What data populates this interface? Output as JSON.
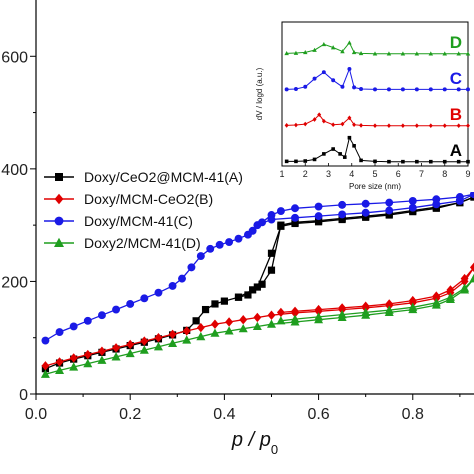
{
  "chart_data": [
    {
      "type": "line",
      "xlabel": "p / p0",
      "ylabel": "",
      "xlim": [
        0.0,
        0.93
      ],
      "ylim": [
        0,
        700
      ],
      "xticks": [
        "0.0",
        "0.2",
        "0.4",
        "0.6",
        "0.8"
      ],
      "yticks": [
        "0",
        "200",
        "400",
        "600"
      ],
      "ytick_labels_visible": [
        "0",
        "200",
        "400",
        "600"
      ],
      "legend": {
        "placement": "center-left",
        "entries": [
          {
            "label": "Doxy/CeO2@MCM-41(A)",
            "label_sub": "2",
            "color": "#000000",
            "marker": "square"
          },
          {
            "label": "Doxy/MCM-CeO2(B)",
            "color": "#e00000",
            "marker": "diamond"
          },
          {
            "label": "Doxy/MCM-41(C)",
            "color": "#1a1ae6",
            "marker": "circle"
          },
          {
            "label": "Doxy2/MCM-41(D)",
            "color": "#1f9e1f",
            "marker": "triangle"
          }
        ]
      },
      "series": [
        {
          "name": "Doxy/CeO2@MCM-41(A)",
          "color": "#000000",
          "marker": "square",
          "adsorption": [
            [
              0.02,
              45
            ],
            [
              0.05,
              55
            ],
            [
              0.08,
              62
            ],
            [
              0.11,
              68
            ],
            [
              0.14,
              74
            ],
            [
              0.17,
              80
            ],
            [
              0.2,
              86
            ],
            [
              0.23,
              92
            ],
            [
              0.26,
              98
            ],
            [
              0.29,
              105
            ],
            [
              0.32,
              113
            ],
            [
              0.34,
              130
            ],
            [
              0.36,
              150
            ],
            [
              0.38,
              160
            ],
            [
              0.4,
              165
            ],
            [
              0.43,
              172
            ],
            [
              0.46,
              185
            ],
            [
              0.48,
              195
            ],
            [
              0.5,
              220
            ],
            [
              0.52,
              300
            ],
            [
              0.55,
              305
            ],
            [
              0.6,
              308
            ],
            [
              0.65,
              312
            ],
            [
              0.7,
              316
            ],
            [
              0.75,
              320
            ],
            [
              0.8,
              326
            ],
            [
              0.85,
              332
            ],
            [
              0.9,
              340
            ],
            [
              0.93,
              350
            ]
          ],
          "desorption": [
            [
              0.93,
              350
            ],
            [
              0.9,
              340
            ],
            [
              0.85,
              330
            ],
            [
              0.8,
              324
            ],
            [
              0.75,
              318
            ],
            [
              0.7,
              314
            ],
            [
              0.65,
              310
            ],
            [
              0.6,
              306
            ],
            [
              0.55,
              303
            ],
            [
              0.52,
              298
            ],
            [
              0.5,
              250
            ],
            [
              0.47,
              190
            ],
            [
              0.45,
              176
            ],
            [
              0.43,
              172
            ]
          ]
        },
        {
          "name": "Doxy/MCM-CeO2(B)",
          "color": "#e00000",
          "marker": "diamond",
          "adsorption": [
            [
              0.02,
              50
            ],
            [
              0.05,
              57
            ],
            [
              0.08,
              64
            ],
            [
              0.11,
              70
            ],
            [
              0.14,
              76
            ],
            [
              0.17,
              82
            ],
            [
              0.2,
              88
            ],
            [
              0.23,
              94
            ],
            [
              0.26,
              100
            ],
            [
              0.29,
              106
            ],
            [
              0.32,
              112
            ],
            [
              0.35,
              118
            ],
            [
              0.38,
              124
            ],
            [
              0.41,
              128
            ],
            [
              0.44,
              132
            ],
            [
              0.47,
              136
            ],
            [
              0.5,
              140
            ],
            [
              0.55,
              144
            ],
            [
              0.6,
              147
            ],
            [
              0.65,
              150
            ],
            [
              0.7,
              153
            ],
            [
              0.75,
              157
            ],
            [
              0.8,
              162
            ],
            [
              0.85,
              170
            ],
            [
              0.88,
              180
            ],
            [
              0.91,
              200
            ],
            [
              0.93,
              225
            ]
          ],
          "desorption": [
            [
              0.93,
              225
            ],
            [
              0.91,
              205
            ],
            [
              0.88,
              185
            ],
            [
              0.85,
              174
            ],
            [
              0.8,
              166
            ],
            [
              0.75,
              160
            ],
            [
              0.7,
              156
            ],
            [
              0.65,
              153
            ],
            [
              0.6,
              150
            ],
            [
              0.55,
              147
            ],
            [
              0.52,
              145
            ]
          ]
        },
        {
          "name": "Doxy/MCM-41(C)",
          "color": "#1a1ae6",
          "marker": "circle",
          "adsorption": [
            [
              0.02,
              95
            ],
            [
              0.05,
              110
            ],
            [
              0.08,
              120
            ],
            [
              0.11,
              130
            ],
            [
              0.14,
              140
            ],
            [
              0.17,
              150
            ],
            [
              0.2,
              160
            ],
            [
              0.23,
              170
            ],
            [
              0.26,
              180
            ],
            [
              0.29,
              192
            ],
            [
              0.31,
              205
            ],
            [
              0.33,
              225
            ],
            [
              0.35,
              245
            ],
            [
              0.37,
              258
            ],
            [
              0.39,
              265
            ],
            [
              0.41,
              270
            ],
            [
              0.43,
              276
            ],
            [
              0.45,
              283
            ],
            [
              0.47,
              300
            ],
            [
              0.5,
              310
            ],
            [
              0.55,
              313
            ],
            [
              0.6,
              316
            ],
            [
              0.65,
              319
            ],
            [
              0.7,
              322
            ],
            [
              0.75,
              326
            ],
            [
              0.8,
              331
            ],
            [
              0.85,
              337
            ],
            [
              0.9,
              343
            ],
            [
              0.93,
              355
            ]
          ],
          "desorption": [
            [
              0.93,
              355
            ],
            [
              0.9,
              350
            ],
            [
              0.85,
              346
            ],
            [
              0.8,
              343
            ],
            [
              0.75,
              340
            ],
            [
              0.7,
              338
            ],
            [
              0.65,
              336
            ],
            [
              0.6,
              333
            ],
            [
              0.55,
              330
            ],
            [
              0.52,
              325
            ],
            [
              0.5,
              318
            ],
            [
              0.48,
              305
            ],
            [
              0.46,
              290
            ]
          ]
        },
        {
          "name": "Doxy2/MCM-41(D)",
          "color": "#1f9e1f",
          "marker": "triangle",
          "adsorption": [
            [
              0.02,
              35
            ],
            [
              0.05,
              42
            ],
            [
              0.08,
              48
            ],
            [
              0.11,
              54
            ],
            [
              0.14,
              60
            ],
            [
              0.17,
              66
            ],
            [
              0.2,
              72
            ],
            [
              0.23,
              78
            ],
            [
              0.26,
              84
            ],
            [
              0.29,
              90
            ],
            [
              0.32,
              96
            ],
            [
              0.35,
              102
            ],
            [
              0.38,
              108
            ],
            [
              0.41,
              112
            ],
            [
              0.44,
              116
            ],
            [
              0.47,
              120
            ],
            [
              0.5,
              124
            ],
            [
              0.55,
              128
            ],
            [
              0.6,
              132
            ],
            [
              0.65,
              136
            ],
            [
              0.7,
              140
            ],
            [
              0.75,
              145
            ],
            [
              0.8,
              150
            ],
            [
              0.85,
              158
            ],
            [
              0.88,
              168
            ],
            [
              0.91,
              185
            ],
            [
              0.93,
              205
            ]
          ],
          "desorption": [
            [
              0.93,
              205
            ],
            [
              0.91,
              188
            ],
            [
              0.88,
              172
            ],
            [
              0.85,
              162
            ],
            [
              0.8,
              154
            ],
            [
              0.75,
              149
            ],
            [
              0.7,
              145
            ],
            [
              0.65,
              141
            ],
            [
              0.6,
              137
            ],
            [
              0.55,
              133
            ],
            [
              0.52,
              130
            ]
          ]
        }
      ]
    },
    {
      "type": "line",
      "placement": "inset-top-right",
      "xlabel": "Pore size (nm)",
      "ylabel": "dV / logd (a.u.)",
      "xlim": [
        1,
        9
      ],
      "xticks": [
        "1",
        "2",
        "3",
        "4",
        "5",
        "6",
        "7",
        "8",
        "9"
      ],
      "series": [
        {
          "name": "D",
          "color": "#1f9e1f",
          "marker": "triangle",
          "offset": 3,
          "x": [
            1.2,
            1.6,
            2.0,
            2.4,
            2.8,
            3.2,
            3.6,
            3.9,
            4.1,
            4.4,
            5.0,
            5.6,
            6.2,
            6.8,
            7.4,
            8.0,
            8.6,
            9.0
          ],
          "y": [
            0.02,
            0.03,
            0.05,
            0.12,
            0.3,
            0.2,
            0.08,
            0.35,
            0.05,
            0.02,
            0.01,
            0.01,
            0.01,
            0.01,
            0.01,
            0.01,
            0.01,
            0.01
          ]
        },
        {
          "name": "C",
          "color": "#1a1ae6",
          "marker": "circle",
          "offset": 2,
          "x": [
            1.2,
            1.6,
            2.0,
            2.4,
            2.8,
            3.2,
            3.6,
            3.9,
            4.1,
            4.4,
            5.0,
            5.6,
            6.2,
            6.8,
            7.4,
            8.0,
            8.6,
            9.0
          ],
          "y": [
            0.02,
            0.03,
            0.1,
            0.35,
            0.55,
            0.3,
            0.1,
            0.65,
            0.08,
            0.03,
            0.02,
            0.02,
            0.02,
            0.02,
            0.02,
            0.02,
            0.02,
            0.02
          ]
        },
        {
          "name": "B",
          "color": "#e00000",
          "marker": "diamond",
          "offset": 1,
          "x": [
            1.2,
            1.6,
            2.0,
            2.4,
            2.6,
            2.8,
            3.2,
            3.6,
            3.9,
            4.1,
            4.4,
            5.0,
            5.6,
            6.2,
            6.8,
            7.4,
            8.0,
            8.6,
            9.0
          ],
          "y": [
            0.02,
            0.03,
            0.06,
            0.2,
            0.35,
            0.15,
            0.04,
            0.06,
            0.25,
            0.04,
            0.02,
            0.01,
            0.01,
            0.01,
            0.01,
            0.01,
            0.01,
            0.01,
            0.01
          ]
        },
        {
          "name": "A",
          "color": "#000000",
          "marker": "square",
          "offset": 0,
          "x": [
            1.2,
            1.6,
            2.0,
            2.4,
            2.8,
            3.2,
            3.5,
            3.7,
            3.9,
            4.1,
            4.4,
            5.0,
            5.6,
            6.2,
            6.8,
            7.4,
            8.0,
            8.6,
            9.0
          ],
          "y": [
            0.02,
            0.02,
            0.03,
            0.08,
            0.25,
            0.4,
            0.25,
            0.15,
            0.75,
            0.5,
            0.05,
            0.02,
            0.01,
            0.01,
            0.01,
            0.01,
            0.01,
            0.01,
            0.01
          ]
        }
      ],
      "letters": [
        "D",
        "C",
        "B",
        "A"
      ]
    }
  ]
}
